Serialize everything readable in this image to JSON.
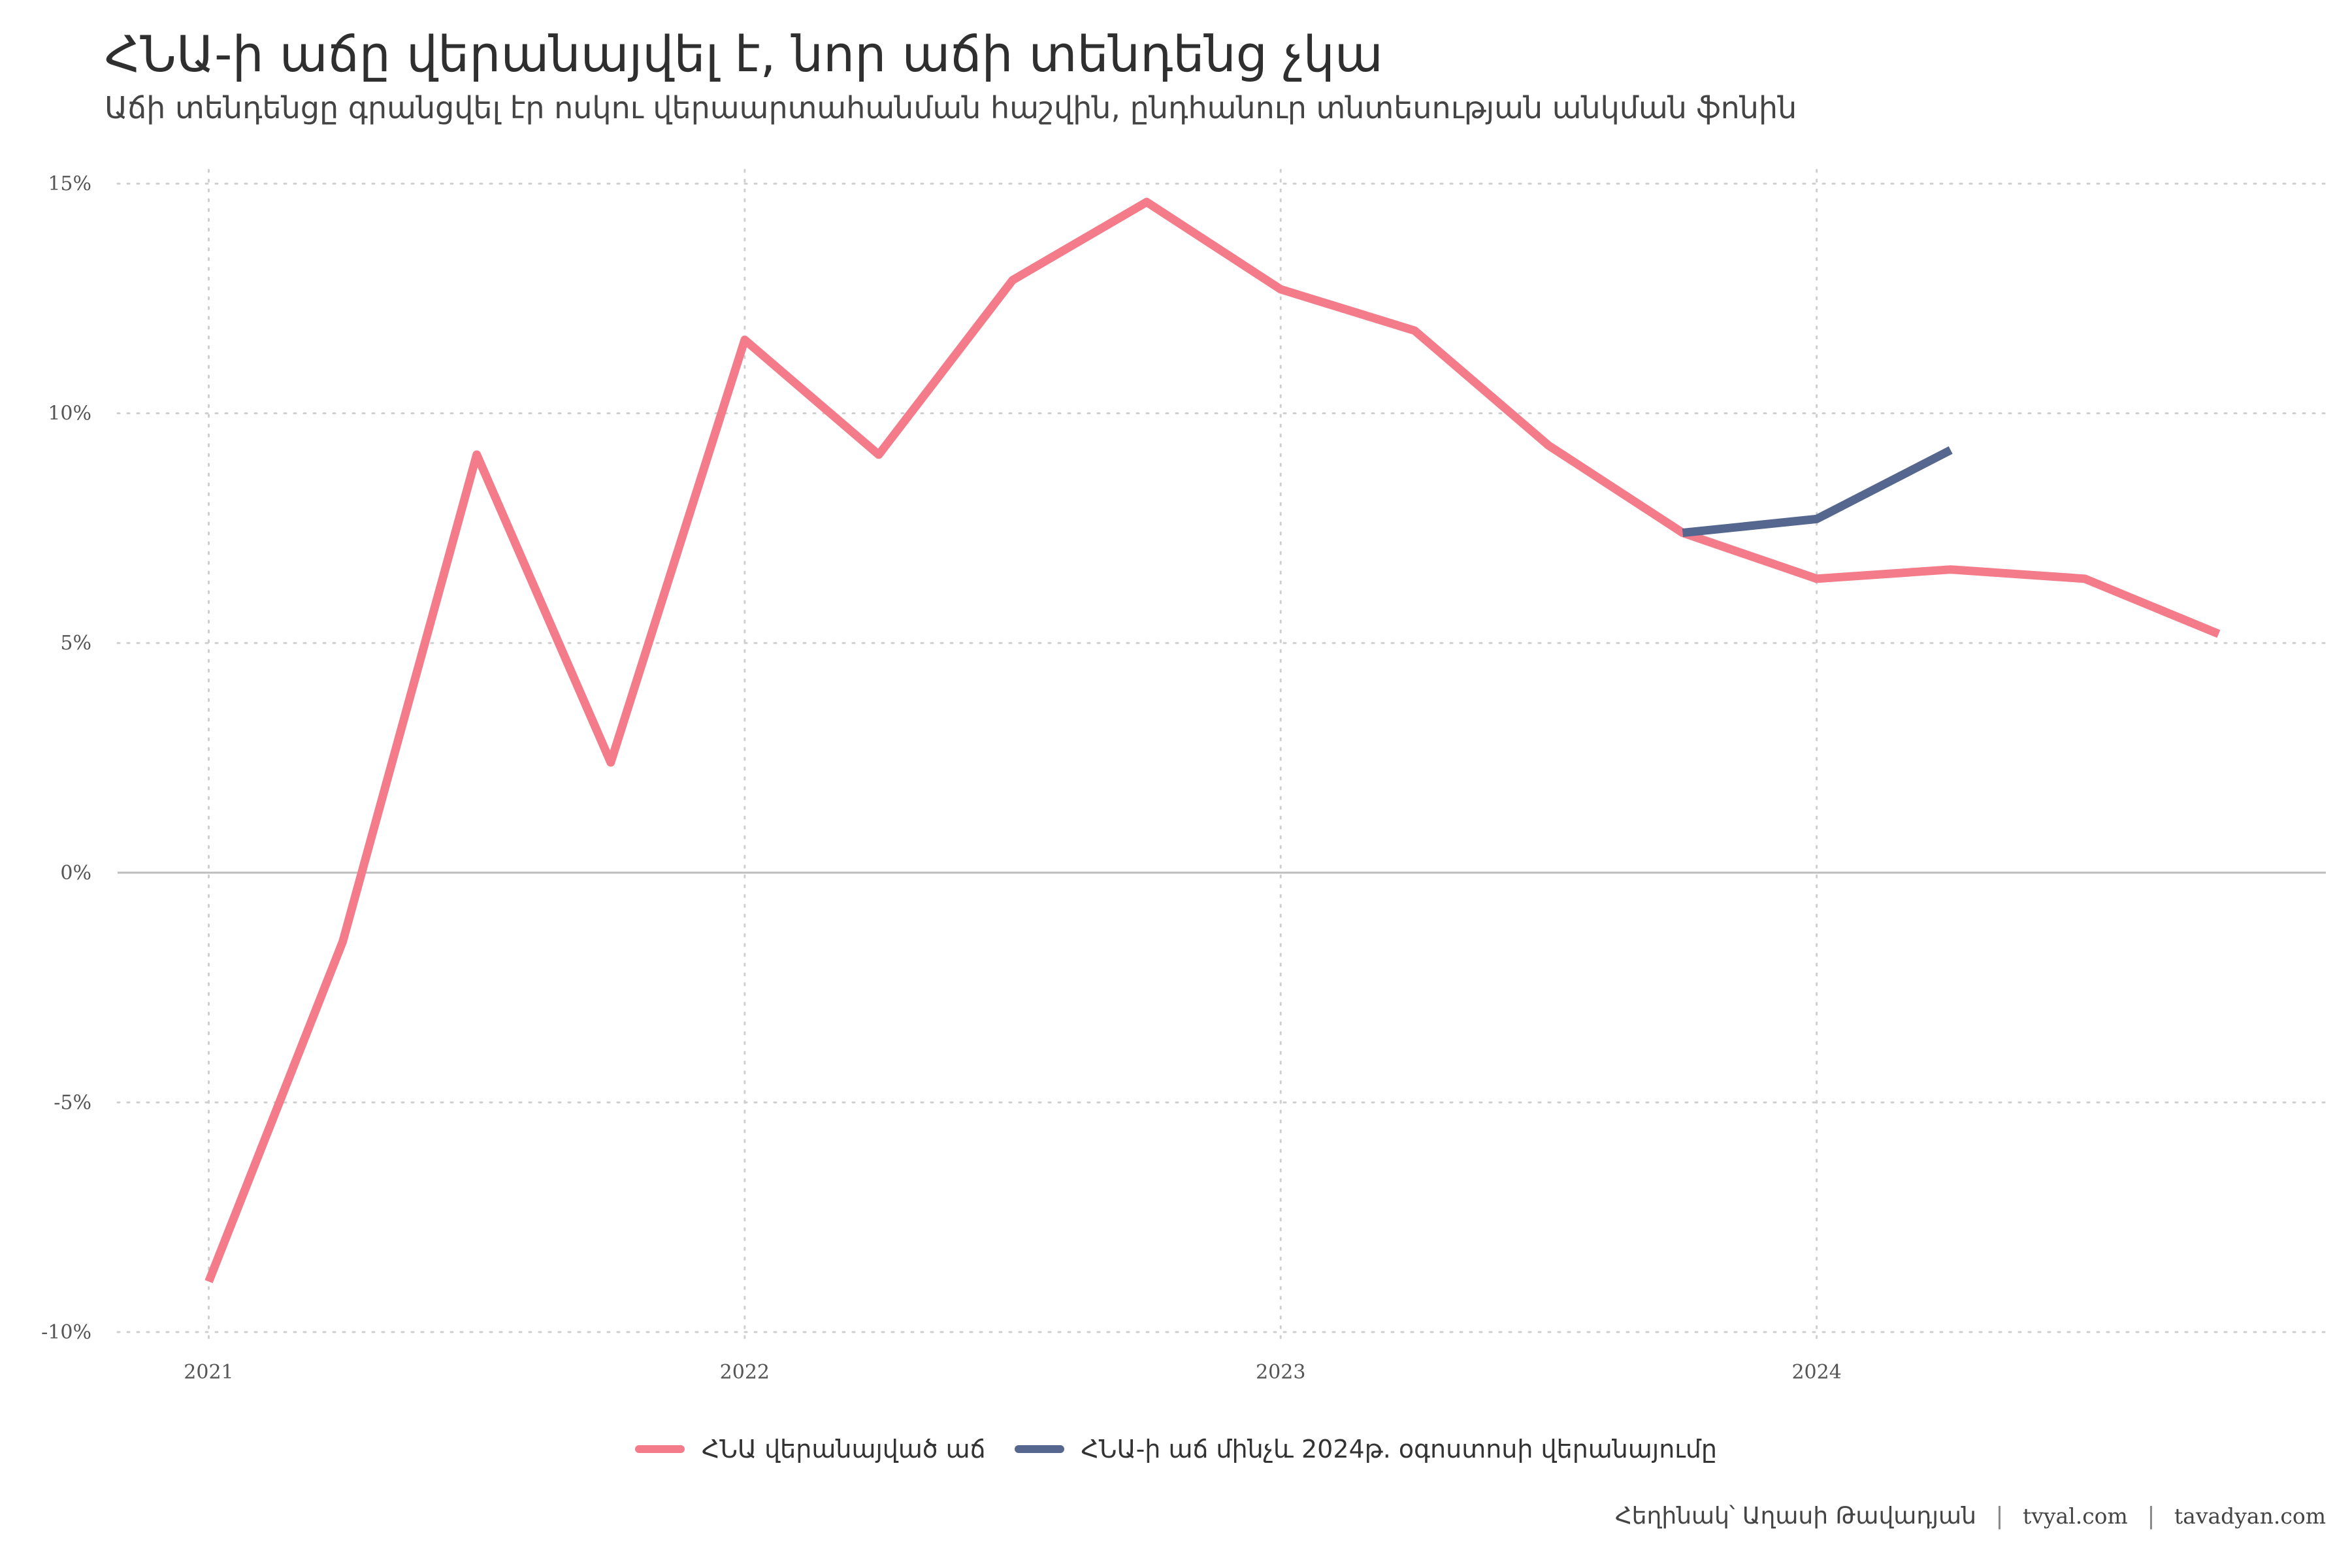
{
  "chart_data": {
    "type": "line",
    "title": "ՀՆԱ-ի աճը վերանայվել է, նոր աճի տենդենց չկա",
    "subtitle": "Աճի տենդենցը գրանցվել էր ոսկու վերաարտահանման հաշվին, ընդհանուր տնտեսության անկման ֆոնին",
    "xlabel": "",
    "ylabel": "",
    "x_ticks": [
      "2021",
      "2022",
      "2023",
      "2024"
    ],
    "y_ticks": [
      "15%",
      "10%",
      "5%",
      "0%",
      "-5%",
      "-10%"
    ],
    "xlim": [
      2020.83,
      2024.95
    ],
    "ylim": [
      -10.3,
      15.3
    ],
    "grid": true,
    "legend_position": "bottom",
    "series": [
      {
        "name": "ՀՆԱ վերանայված աճ",
        "color": "#f47c8a",
        "x": [
          2021.0,
          2021.25,
          2021.5,
          2021.75,
          2022.0,
          2022.25,
          2022.5,
          2022.75,
          2023.0,
          2023.25,
          2023.5,
          2023.75,
          2024.0,
          2024.25,
          2024.5,
          2024.75
        ],
        "values": [
          -8.9,
          -1.5,
          9.1,
          2.4,
          11.6,
          9.1,
          12.9,
          14.6,
          12.7,
          11.8,
          9.3,
          7.4,
          6.4,
          6.6,
          6.4,
          5.2
        ]
      },
      {
        "name": "ՀՆԱ-ի աճ մինչև 2024թ. օգոստոսի վերանայումը",
        "color": "#56678f",
        "x": [
          2023.75,
          2024.0,
          2024.25
        ],
        "values": [
          7.4,
          7.7,
          9.2
        ]
      }
    ]
  },
  "caption": {
    "author": "Հեղինակ՝ Աղասի Թավադյան",
    "separator": "|",
    "site1": "tvyal.com",
    "site2": "tavadyan.com"
  }
}
